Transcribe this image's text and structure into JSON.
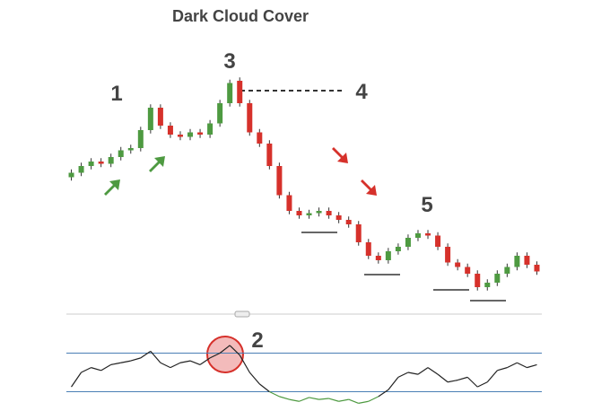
{
  "chart_data": [
    {
      "type": "candlestick",
      "title": "Dark Cloud Cover",
      "annotations": [
        "1",
        "2",
        "3",
        "4",
        "5"
      ],
      "up_color": "#4e9a41",
      "down_color": "#d6312b",
      "ylim": [
        0,
        100
      ],
      "open": [
        55,
        57,
        60,
        62,
        61,
        64,
        67,
        68,
        76,
        86,
        78,
        74,
        73,
        75,
        74,
        79,
        88,
        98,
        88,
        75,
        70,
        60,
        47,
        40,
        38,
        39,
        40,
        38,
        36,
        34,
        26,
        20,
        18,
        22,
        24,
        28,
        30,
        29,
        24,
        17,
        15,
        12,
        6,
        8,
        12,
        15,
        20,
        16
      ],
      "high": [
        58.5,
        61.5,
        63.5,
        63.5,
        65.5,
        68.5,
        69.5,
        77.5,
        87.5,
        87.5,
        79.5,
        75.5,
        76.5,
        76.5,
        80.5,
        89.5,
        98.5,
        99.5,
        89.5,
        76.5,
        71.5,
        61.5,
        48.5,
        41.5,
        40.5,
        41.5,
        41.5,
        39.5,
        37.5,
        35.5,
        27.5,
        21.5,
        23.5,
        25.5,
        29.5,
        31.5,
        31.5,
        30.5,
        25.5,
        18.5,
        16.5,
        13.5,
        9.5,
        13.5,
        16.5,
        21.5,
        21.5,
        17.5
      ],
      "low": [
        53.5,
        55.5,
        58.5,
        59.5,
        59.5,
        62.5,
        65.5,
        66.5,
        74.5,
        76.5,
        72.5,
        71.5,
        71.5,
        72.5,
        72.5,
        77.5,
        86.5,
        86.5,
        73.5,
        68.5,
        58.5,
        45.5,
        38.5,
        36.5,
        36.5,
        37.5,
        36.5,
        34.5,
        32.5,
        24.5,
        18.5,
        16.5,
        16.5,
        20.5,
        22.5,
        26.5,
        27.5,
        22.5,
        15.5,
        13.5,
        10.5,
        4.5,
        4.5,
        6.5,
        10.5,
        13.5,
        14.5,
        11.5
      ],
      "close": [
        57,
        60,
        62,
        61,
        64,
        67,
        68,
        76,
        86,
        78,
        74,
        73,
        75,
        74,
        79,
        88,
        97,
        88,
        75,
        70,
        60,
        47,
        40,
        38,
        39,
        40,
        38,
        36,
        34,
        26,
        20,
        18,
        22,
        24,
        28,
        30,
        29,
        24,
        17,
        15,
        12,
        6,
        8,
        12,
        15,
        20,
        16,
        13
      ]
    },
    {
      "type": "oscillator",
      "ylim": [
        10,
        90
      ],
      "levels": [
        70,
        30
      ],
      "level_color": "#4a7fb5",
      "color": "#222222",
      "oversold_color": "#4e9a41",
      "values": [
        35,
        50,
        55,
        52,
        58,
        60,
        62,
        65,
        72,
        60,
        55,
        60,
        62,
        58,
        65,
        70,
        78,
        68,
        50,
        38,
        30,
        25,
        22,
        20,
        24,
        22,
        23,
        20,
        22,
        18,
        20,
        25,
        32,
        45,
        50,
        48,
        55,
        48,
        40,
        42,
        45,
        35,
        40,
        52,
        55,
        60,
        55,
        58
      ]
    }
  ]
}
